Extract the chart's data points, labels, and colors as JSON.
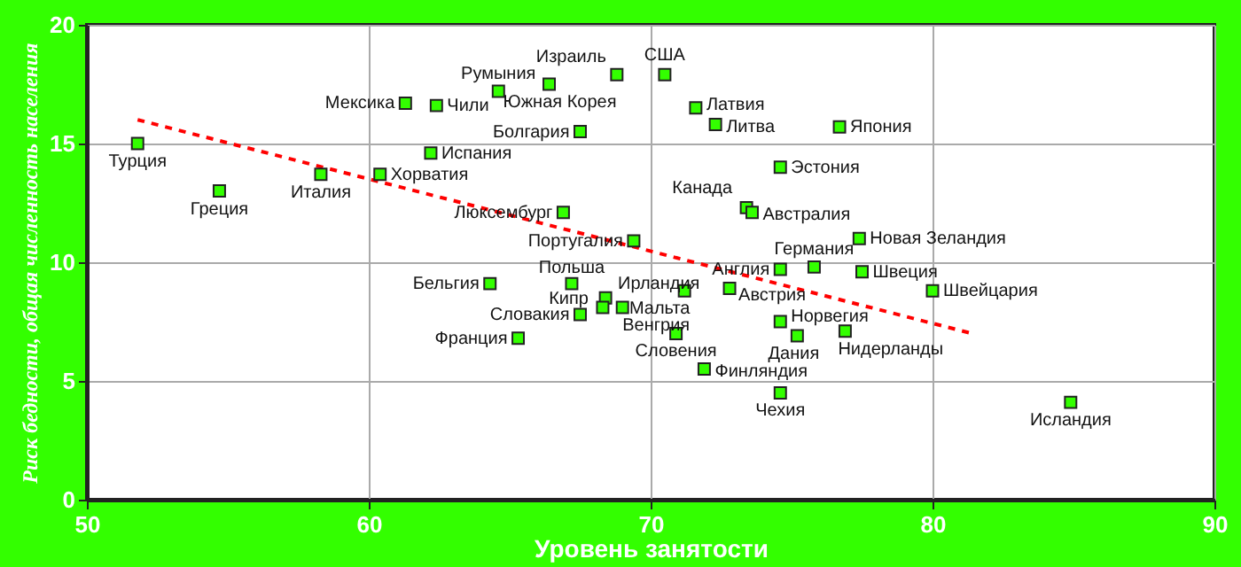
{
  "chart_data": {
    "type": "scatter",
    "xlabel": "Уровень занятости",
    "ylabel": "Риск бедности, общая численность населения",
    "xlim": [
      50,
      90
    ],
    "xticks": [
      50,
      60,
      70,
      80,
      90
    ],
    "ylim": [
      0,
      20
    ],
    "yticks": [
      0,
      5,
      10,
      15,
      20
    ],
    "grid": true,
    "series": [
      {
        "type": "scatter",
        "color": "#33ff00",
        "marker": "square",
        "x": [
          51.8,
          54.7,
          58.3,
          60.4,
          61.3,
          62.2,
          62.4,
          64.6,
          66.4,
          68.8,
          67.5,
          66.9,
          69.4,
          70.5,
          71.6,
          72.3,
          76.7,
          74.6,
          73.4,
          73.6,
          77.4,
          75.8,
          74.6,
          77.5,
          80.0,
          72.8,
          71.2,
          74.6,
          75.2,
          76.9,
          70.9,
          71.9,
          74.6,
          84.9,
          64.3,
          67.2,
          68.4,
          68.3,
          69.0,
          67.5,
          65.3
        ],
        "values": [
          15.0,
          13.0,
          13.7,
          13.7,
          16.7,
          14.6,
          16.6,
          17.2,
          17.5,
          17.9,
          15.5,
          12.1,
          10.9,
          17.9,
          16.5,
          15.8,
          15.7,
          14.0,
          12.3,
          12.1,
          11.0,
          9.8,
          9.7,
          9.6,
          8.8,
          8.9,
          8.8,
          7.5,
          6.9,
          7.1,
          7.0,
          5.5,
          4.5,
          4.1,
          9.1,
          9.1,
          8.5,
          8.1,
          8.1,
          7.8,
          6.8
        ]
      },
      {
        "type": "line",
        "color": "#ff0000",
        "line_style": "dashed",
        "x": [
          51.8,
          81.4
        ],
        "values": [
          16.0,
          7.0
        ]
      }
    ],
    "annotations": [
      {
        "text": "Турция",
        "x": 51.8,
        "y": 15.0
      },
      {
        "text": "Греция",
        "x": 54.7,
        "y": 13.0
      },
      {
        "text": "Италия",
        "x": 58.3,
        "y": 13.7
      },
      {
        "text": "Хорватия",
        "x": 60.4,
        "y": 13.7
      },
      {
        "text": "Мексика",
        "x": 61.3,
        "y": 16.7
      },
      {
        "text": "Испания",
        "x": 62.2,
        "y": 14.6
      },
      {
        "text": "Чили",
        "x": 62.4,
        "y": 16.6
      },
      {
        "text": "Румыния",
        "x": 64.6,
        "y": 17.2
      },
      {
        "text": "Южная Корея",
        "x": 66.4,
        "y": 17.5
      },
      {
        "text": "Израиль",
        "x": 68.8,
        "y": 17.9
      },
      {
        "text": "Болгария",
        "x": 67.5,
        "y": 15.5
      },
      {
        "text": "Люксембург",
        "x": 66.9,
        "y": 12.1
      },
      {
        "text": "Португалия",
        "x": 69.4,
        "y": 10.9
      },
      {
        "text": "США",
        "x": 70.5,
        "y": 17.9
      },
      {
        "text": "Латвия",
        "x": 71.6,
        "y": 16.5
      },
      {
        "text": "Литва",
        "x": 72.3,
        "y": 15.8
      },
      {
        "text": "Япония",
        "x": 76.7,
        "y": 15.7
      },
      {
        "text": "Эстония",
        "x": 74.6,
        "y": 14.0
      },
      {
        "text": "Канада",
        "x": 73.4,
        "y": 12.3
      },
      {
        "text": "Австралия",
        "x": 73.6,
        "y": 12.1
      },
      {
        "text": "Новая Зеландия",
        "x": 77.4,
        "y": 11.0
      },
      {
        "text": "Германия",
        "x": 75.8,
        "y": 9.8
      },
      {
        "text": "Англия",
        "x": 74.6,
        "y": 9.7
      },
      {
        "text": "Швеция",
        "x": 77.5,
        "y": 9.6
      },
      {
        "text": "Швейцария",
        "x": 80.0,
        "y": 8.8
      },
      {
        "text": "Австрия",
        "x": 72.8,
        "y": 8.9
      },
      {
        "text": "Мальта",
        "x": 71.2,
        "y": 8.8
      },
      {
        "text": "Норвегия",
        "x": 74.6,
        "y": 7.5
      },
      {
        "text": "Дания",
        "x": 75.2,
        "y": 6.9
      },
      {
        "text": "Нидерланды",
        "x": 76.9,
        "y": 7.1
      },
      {
        "text": "Словения",
        "x": 70.9,
        "y": 7.0
      },
      {
        "text": "Финляндия",
        "x": 71.9,
        "y": 5.5
      },
      {
        "text": "Чехия",
        "x": 74.6,
        "y": 4.5
      },
      {
        "text": "Исландия",
        "x": 84.9,
        "y": 4.1
      },
      {
        "text": "Бельгия",
        "x": 64.3,
        "y": 9.1
      },
      {
        "text": "Польша",
        "x": 67.2,
        "y": 9.1
      },
      {
        "text": "Ирландия",
        "x": 68.4,
        "y": 8.5
      },
      {
        "text": "Кипр",
        "x": 68.3,
        "y": 8.1
      },
      {
        "text": "Венгрия",
        "x": 69.0,
        "y": 8.1
      },
      {
        "text": "Словакия",
        "x": 67.5,
        "y": 7.8
      },
      {
        "text": "Франция",
        "x": 65.3,
        "y": 6.8
      }
    ]
  }
}
